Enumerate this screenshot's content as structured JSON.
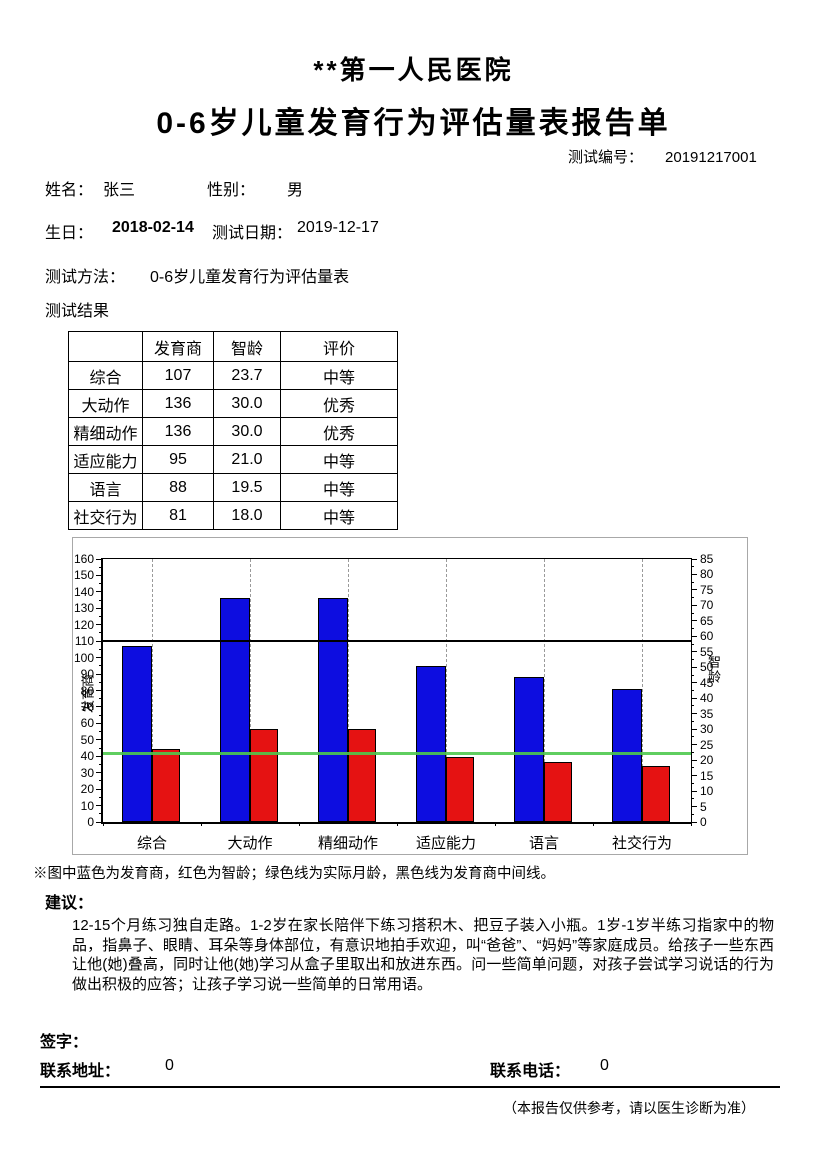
{
  "header": {
    "hospital": "**第一人民医院",
    "report_title": "0-6岁儿童发育行为评估量表报告单",
    "test_no_label": "测试编号：",
    "test_no": "20191217001"
  },
  "patient": {
    "name_label": "姓名：",
    "name": "张三",
    "gender_label": "性别：",
    "gender": "男",
    "birth_label": "生日：",
    "birth": "2018-02-14",
    "test_date_label": "测试日期：",
    "test_date": "2019-12-17",
    "method_label": "测试方法：",
    "method": "0-6岁儿童发育行为评估量表",
    "result_label": "测试结果"
  },
  "results_table": {
    "headers": [
      "",
      "发育商",
      "智龄",
      "评价"
    ],
    "rows": [
      {
        "label": "综合",
        "dq": "107",
        "mental_age": "23.7",
        "evaluation": "中等"
      },
      {
        "label": "大动作",
        "dq": "136",
        "mental_age": "30.0",
        "evaluation": "优秀"
      },
      {
        "label": "精细动作",
        "dq": "136",
        "mental_age": "30.0",
        "evaluation": "优秀"
      },
      {
        "label": "适应能力",
        "dq": "95",
        "mental_age": "21.0",
        "evaluation": "中等"
      },
      {
        "label": "语言",
        "dq": "88",
        "mental_age": "19.5",
        "evaluation": "中等"
      },
      {
        "label": "社交行为",
        "dq": "81",
        "mental_age": "18.0",
        "evaluation": "中等"
      }
    ]
  },
  "chart_data": {
    "type": "bar",
    "title": "",
    "categories": [
      "综合",
      "大动作",
      "精细动作",
      "适应能力",
      "语言",
      "社交行为"
    ],
    "series": [
      {
        "name": "发育商",
        "axis": "left",
        "color": "#0d0de0",
        "values": [
          107,
          136,
          136,
          95,
          88,
          81
        ]
      },
      {
        "name": "智龄",
        "axis": "right",
        "color": "#e51212",
        "values": [
          23.7,
          30.0,
          30.0,
          21.0,
          19.5,
          18.0
        ]
      }
    ],
    "left_axis": {
      "label": "发育商",
      "min": 0,
      "max": 160,
      "step": 10
    },
    "right_axis": {
      "label": "智龄",
      "min": 0,
      "max": 85,
      "step": 5
    },
    "ref_lines": [
      {
        "name": "发育商中间线",
        "axis": "left",
        "value": 110,
        "color": "#000000"
      },
      {
        "name": "实际月龄",
        "axis": "right",
        "value": 22,
        "color": "#4ec94e"
      }
    ],
    "grid": "vertical-dashed",
    "legend_position": "none",
    "legend_note": "※图中蓝色为发育商，红色为智龄；绿色线为实际月龄，黑色线为发育商中间线。"
  },
  "advice": {
    "label": "建议：",
    "text": "12-15个月练习独自走路。1-2岁在家长陪伴下练习搭积木、把豆子装入小瓶。1岁-1岁半练习指家中的物品，指鼻子、眼睛、耳朵等身体部位，有意识地拍手欢迎，叫“爸爸”、“妈妈”等家庭成员。给孩子一些东西让他(她)叠高，同时让他(她)学习从盒子里取出和放进东西。问一些简单问题，对孩子尝试学习说话的行为做出积极的应答；让孩子学习说一些简单的日常用语。"
  },
  "footer": {
    "sign_label": "签字：",
    "address_label": "联系地址：",
    "address": "0",
    "phone_label": "联系电话：",
    "phone": "0",
    "disclaimer": "（本报告仅供参考，请以医生诊断为准）"
  }
}
